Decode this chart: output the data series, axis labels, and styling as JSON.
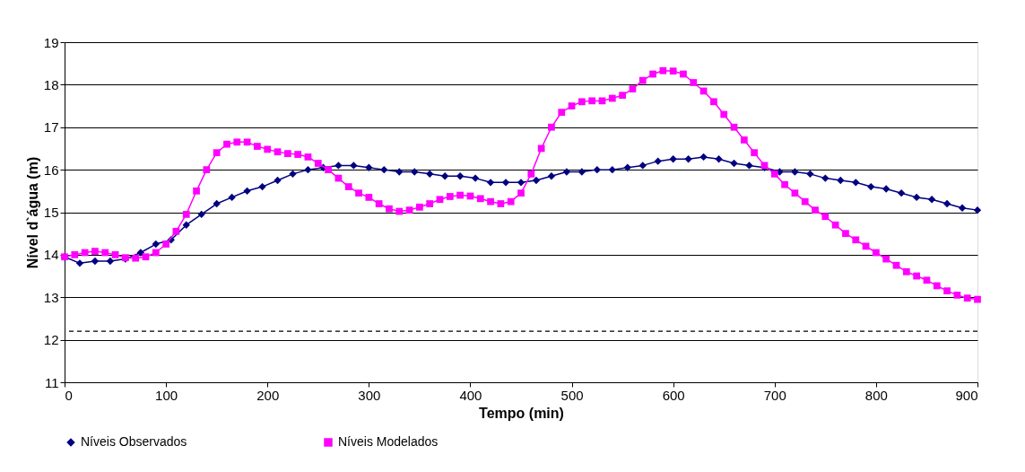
{
  "chart_data": {
    "type": "line",
    "xlabel": "Tempo (min)",
    "ylabel": "Nível d`água (m)",
    "xlim": [
      0,
      900
    ],
    "xticks": [
      0,
      100,
      200,
      300,
      400,
      500,
      600,
      700,
      800,
      900
    ],
    "ylim": [
      11,
      19
    ],
    "yticks": [
      11,
      12,
      13,
      14,
      15,
      16,
      17,
      18,
      19
    ],
    "grid": "y",
    "legend": "bottom",
    "ref_lines": [
      {
        "axis": "y",
        "value": 12.2,
        "label": null,
        "color": "#000000",
        "line_style": "dashed"
      }
    ],
    "series": [
      {
        "name": "Níveis Observados",
        "color": "#000080",
        "marker": "diamond",
        "line_style": "solid",
        "x": [
          0,
          15,
          30,
          45,
          60,
          75,
          90,
          105,
          120,
          135,
          150,
          165,
          180,
          195,
          210,
          225,
          240,
          255,
          270,
          285,
          300,
          315,
          330,
          345,
          360,
          375,
          390,
          405,
          420,
          435,
          450,
          465,
          480,
          495,
          510,
          525,
          540,
          555,
          570,
          585,
          600,
          615,
          630,
          645,
          660,
          675,
          690,
          705,
          720,
          735,
          750,
          765,
          780,
          795,
          810,
          825,
          840,
          855,
          870,
          885,
          900
        ],
        "values": [
          13.95,
          13.8,
          13.85,
          13.85,
          13.9,
          14.05,
          14.25,
          14.35,
          14.7,
          14.95,
          15.2,
          15.35,
          15.5,
          15.6,
          15.75,
          15.9,
          16.0,
          16.05,
          16.1,
          16.1,
          16.05,
          16.0,
          15.95,
          15.95,
          15.9,
          15.85,
          15.85,
          15.8,
          15.7,
          15.7,
          15.7,
          15.75,
          15.85,
          15.95,
          15.95,
          16.0,
          16.0,
          16.05,
          16.1,
          16.2,
          16.25,
          16.25,
          16.3,
          16.25,
          16.15,
          16.1,
          16.05,
          15.95,
          15.95,
          15.9,
          15.8,
          15.75,
          15.7,
          15.6,
          15.55,
          15.45,
          15.35,
          15.3,
          15.2,
          15.1,
          15.05
        ]
      },
      {
        "name": "Níveis Modelados",
        "color": "#ff00ff",
        "marker": "square",
        "line_style": "solid",
        "x": [
          0,
          10,
          20,
          30,
          40,
          50,
          60,
          70,
          80,
          90,
          100,
          110,
          120,
          130,
          140,
          150,
          160,
          170,
          180,
          190,
          200,
          210,
          220,
          230,
          240,
          250,
          260,
          270,
          280,
          290,
          300,
          310,
          320,
          330,
          340,
          350,
          360,
          370,
          380,
          390,
          400,
          410,
          420,
          430,
          440,
          450,
          460,
          470,
          480,
          490,
          500,
          510,
          520,
          530,
          540,
          550,
          560,
          570,
          580,
          590,
          600,
          610,
          620,
          630,
          640,
          650,
          660,
          670,
          680,
          690,
          700,
          710,
          720,
          730,
          740,
          750,
          760,
          770,
          780,
          790,
          800,
          810,
          820,
          830,
          840,
          850,
          860,
          870,
          880,
          890,
          900
        ],
        "values": [
          13.95,
          14.0,
          14.05,
          14.08,
          14.05,
          14.0,
          13.93,
          13.92,
          13.95,
          14.05,
          14.25,
          14.55,
          14.95,
          15.5,
          16.0,
          16.4,
          16.6,
          16.65,
          16.65,
          16.55,
          16.48,
          16.42,
          16.38,
          16.36,
          16.3,
          16.15,
          16.0,
          15.8,
          15.6,
          15.45,
          15.35,
          15.2,
          15.08,
          15.02,
          15.05,
          15.12,
          15.2,
          15.3,
          15.37,
          15.4,
          15.38,
          15.32,
          15.25,
          15.2,
          15.25,
          15.45,
          15.9,
          16.5,
          17.0,
          17.35,
          17.5,
          17.6,
          17.62,
          17.62,
          17.68,
          17.75,
          17.9,
          18.1,
          18.25,
          18.33,
          18.32,
          18.25,
          18.05,
          17.85,
          17.6,
          17.3,
          17.0,
          16.7,
          16.4,
          16.1,
          15.9,
          15.65,
          15.45,
          15.25,
          15.05,
          14.9,
          14.7,
          14.5,
          14.35,
          14.2,
          14.05,
          13.9,
          13.75,
          13.6,
          13.5,
          13.4,
          13.27,
          13.15,
          13.05,
          12.98,
          12.95
        ]
      }
    ]
  }
}
